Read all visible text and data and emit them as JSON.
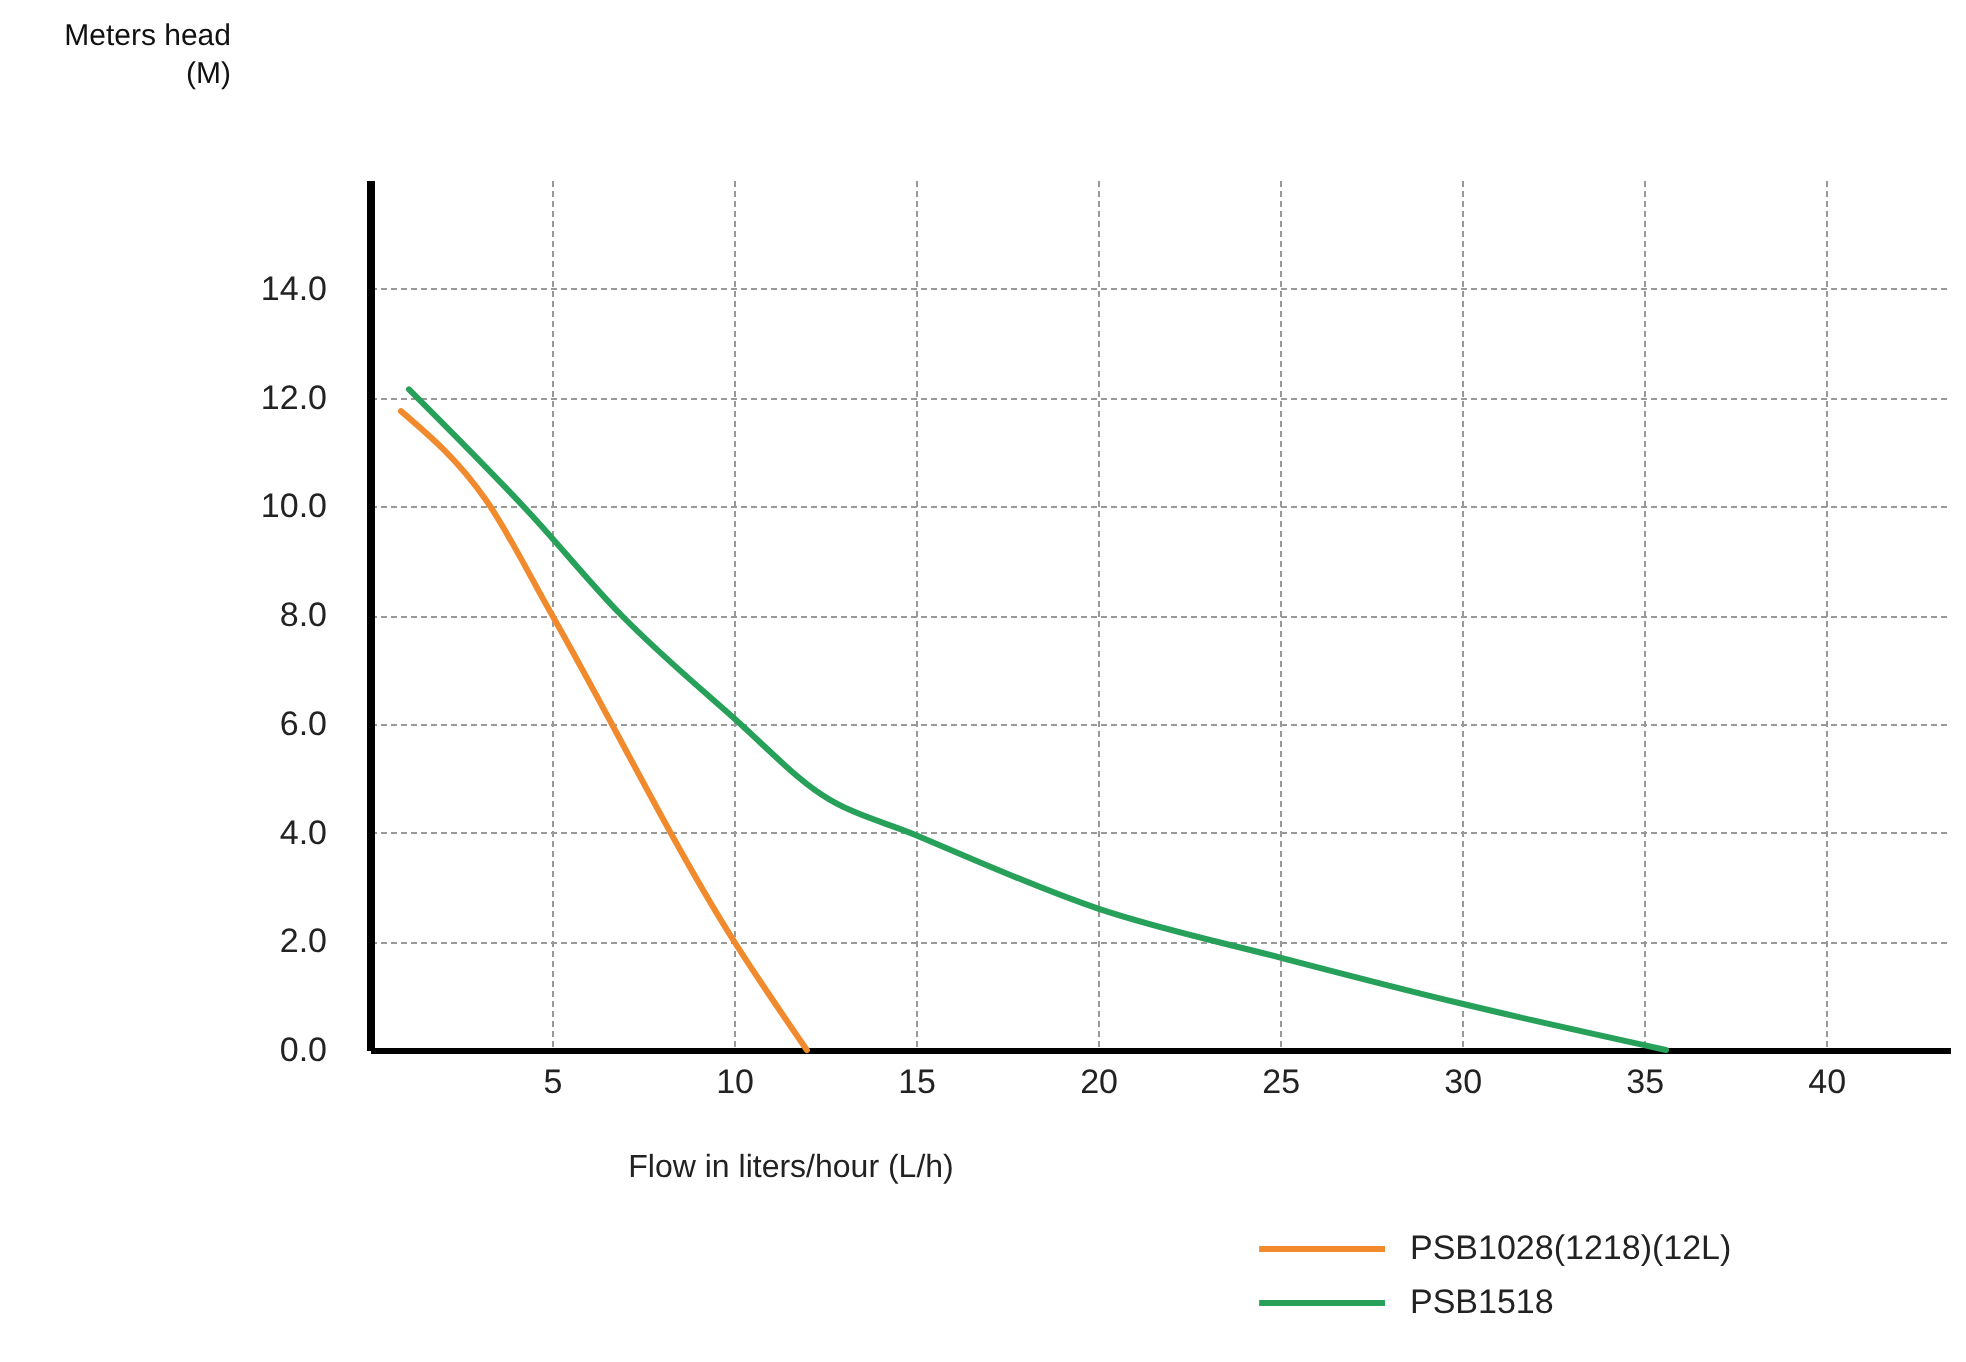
{
  "chart_data": {
    "type": "line",
    "ylabel": "Meters head\n(M)",
    "xlabel": "Flow in liters/hour (L/h)",
    "xlim": [
      0,
      43.4
    ],
    "xticks": [
      5,
      10,
      15,
      20,
      25,
      30,
      35,
      40
    ],
    "ylim": [
      0,
      16
    ],
    "yticks": [
      {
        "value": 0,
        "label": "0.0"
      },
      {
        "value": 2,
        "label": "2.0"
      },
      {
        "value": 4,
        "label": "4.0"
      },
      {
        "value": 6,
        "label": "6.0"
      },
      {
        "value": 8,
        "label": "8.0"
      },
      {
        "value": 10,
        "label": "10.0"
      },
      {
        "value": 12,
        "label": "12.0"
      },
      {
        "value": 14,
        "label": "14.0"
      }
    ],
    "grid": true,
    "legend": "bottom right",
    "line_style": "solid",
    "series": [
      {
        "name": "PSB1028(1218)(12L)",
        "color": "#f08a2c",
        "x": [
          0.85,
          3.2,
          5,
          10,
          12
        ],
        "values": [
          11.75,
          10.1,
          8,
          2,
          0
        ]
      },
      {
        "name": "PSB1518",
        "color": "#27a05a",
        "x": [
          1.07,
          4.35,
          6.9,
          10,
          12.4,
          15,
          20,
          25,
          30,
          35.6
        ],
        "values": [
          12.15,
          9.9,
          8,
          6.1,
          4.7,
          3.95,
          2.6,
          1.7,
          0.85,
          0
        ]
      }
    ]
  }
}
